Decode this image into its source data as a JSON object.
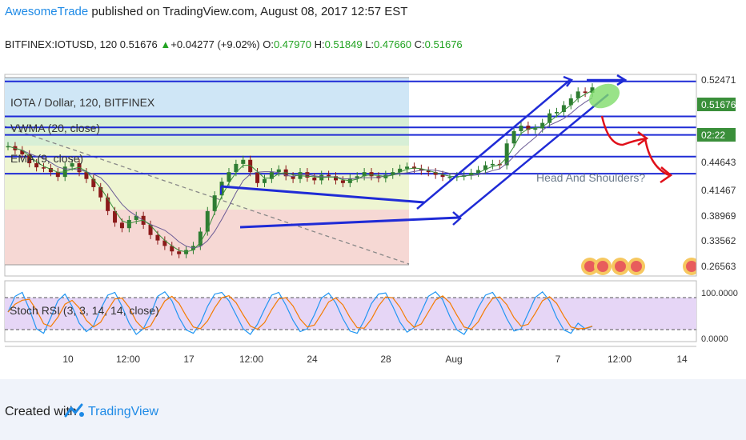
{
  "header": {
    "author": "AwesomeTrade",
    "published": " published on TradingView.com, August 08, 2017 12:57 EST"
  },
  "ticker": {
    "symbol": "BITFINEX:IOTUSD, 120",
    "last": "0.51676",
    "change": "+0.04277 (+9.02%)",
    "o_label": "O:",
    "o": "0.47970",
    "h_label": "H:",
    "h": "0.51849",
    "l_label": "L:",
    "l": "0.47660",
    "c_label": "C:",
    "c": "0.51676"
  },
  "footer": {
    "created": "Created with",
    "brand": "TradingView"
  },
  "colors": {
    "up": "#2e7d32",
    "down": "#8b1a1a",
    "drawing": "#1f2bd6",
    "arrow": "#e0101a",
    "stoch_k": "#2196f3",
    "stoch_d": "#f57c00",
    "price_tag": "#0a1fcf"
  },
  "chart_data": {
    "type": "candlestick",
    "main_labels": [
      "IOTA / Dollar, 120, BITFINEX",
      "VWMA (20, close)",
      "EMA (9, close)"
    ],
    "annotation": "Head And Shoulders?",
    "x_ticks": [
      "10",
      "12:00",
      "17",
      "12:00",
      "24",
      "28",
      "Aug",
      "7",
      "12:00",
      "14"
    ],
    "price_axis": [
      "0.52471",
      "0.51676",
      "02:22",
      "0.44643",
      "0.41467",
      "0.38969",
      "0.33562",
      "0.26563"
    ],
    "last_price": "0.51676",
    "countdown": "02:22",
    "horizontal_levels": [
      0.5247,
      0.4735,
      0.4575,
      0.4464,
      0.4147,
      0.3897
    ],
    "ylim": [
      0.24,
      0.535
    ],
    "indicator": {
      "label": "Stoch RSI (3, 3, 14, 14, close)",
      "axis": [
        "100.0000",
        "0.0000"
      ],
      "bands": [
        80,
        20
      ],
      "ylim": [
        0,
        100
      ]
    },
    "series_close": [
      0.43,
      0.424,
      0.418,
      0.405,
      0.399,
      0.398,
      0.392,
      0.385,
      0.4,
      0.405,
      0.392,
      0.382,
      0.37,
      0.355,
      0.335,
      0.318,
      0.31,
      0.322,
      0.328,
      0.315,
      0.3,
      0.292,
      0.284,
      0.276,
      0.272,
      0.278,
      0.284,
      0.305,
      0.335,
      0.358,
      0.378,
      0.392,
      0.404,
      0.41,
      0.392,
      0.376,
      0.382,
      0.392,
      0.396,
      0.386,
      0.382,
      0.392,
      0.384,
      0.38,
      0.388,
      0.386,
      0.38,
      0.376,
      0.383,
      0.386,
      0.392,
      0.386,
      0.383,
      0.388,
      0.392,
      0.397,
      0.4,
      0.397,
      0.394,
      0.392,
      0.388,
      0.385,
      0.385,
      0.386,
      0.387,
      0.391,
      0.395,
      0.402,
      0.404,
      0.402,
      0.434,
      0.452,
      0.46,
      0.454,
      0.456,
      0.464,
      0.478,
      0.48,
      0.49,
      0.5,
      0.51,
      0.508,
      0.516
    ],
    "stoch_k": [
      50,
      78,
      85,
      55,
      20,
      12,
      40,
      70,
      82,
      60,
      30,
      15,
      25,
      55,
      80,
      85,
      60,
      30,
      10,
      20,
      45,
      78,
      86,
      70,
      40,
      18,
      12,
      30,
      60,
      82,
      85,
      70,
      45,
      20,
      10,
      28,
      55,
      80,
      85,
      62,
      35,
      15,
      20,
      45,
      75,
      84,
      66,
      38,
      16,
      12,
      35,
      65,
      82,
      84,
      60,
      32,
      14,
      22,
      50,
      78,
      86,
      72,
      42,
      18,
      10,
      30,
      58,
      80,
      85,
      66,
      38,
      16,
      20,
      48,
      76,
      86,
      70,
      40,
      18,
      12,
      30,
      20,
      24
    ]
  }
}
